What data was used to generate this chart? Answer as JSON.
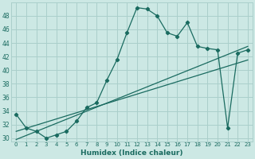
{
  "xlabel": "Humidex (Indice chaleur)",
  "bg_color": "#cce8e4",
  "grid_color": "#aacfcb",
  "line_color": "#1a6b60",
  "xlim": [
    -0.5,
    23.5
  ],
  "ylim": [
    29.5,
    50
  ],
  "yticks": [
    30,
    32,
    34,
    36,
    38,
    40,
    42,
    44,
    46,
    48
  ],
  "xticks": [
    0,
    1,
    2,
    3,
    4,
    5,
    6,
    7,
    8,
    9,
    10,
    11,
    12,
    13,
    14,
    15,
    16,
    17,
    18,
    19,
    20,
    21,
    22,
    23
  ],
  "series1_x": [
    0,
    1,
    2,
    3,
    4,
    5,
    6,
    7,
    8,
    9,
    10,
    11,
    12,
    13,
    14,
    15,
    16,
    17,
    18,
    19,
    20,
    21,
    22,
    23
  ],
  "series1_y": [
    33.5,
    31.5,
    31.0,
    30.0,
    30.5,
    31.0,
    32.5,
    34.5,
    35.2,
    38.5,
    41.5,
    45.5,
    49.2,
    49.0,
    48.0,
    45.5,
    45.0,
    47.0,
    43.5,
    43.2,
    43.0,
    31.5,
    42.5,
    43.0
  ],
  "series2_x": [
    0,
    23
  ],
  "series2_y": [
    29.8,
    43.5
  ],
  "series3_x": [
    0,
    23
  ],
  "series3_y": [
    31.0,
    41.5
  ]
}
